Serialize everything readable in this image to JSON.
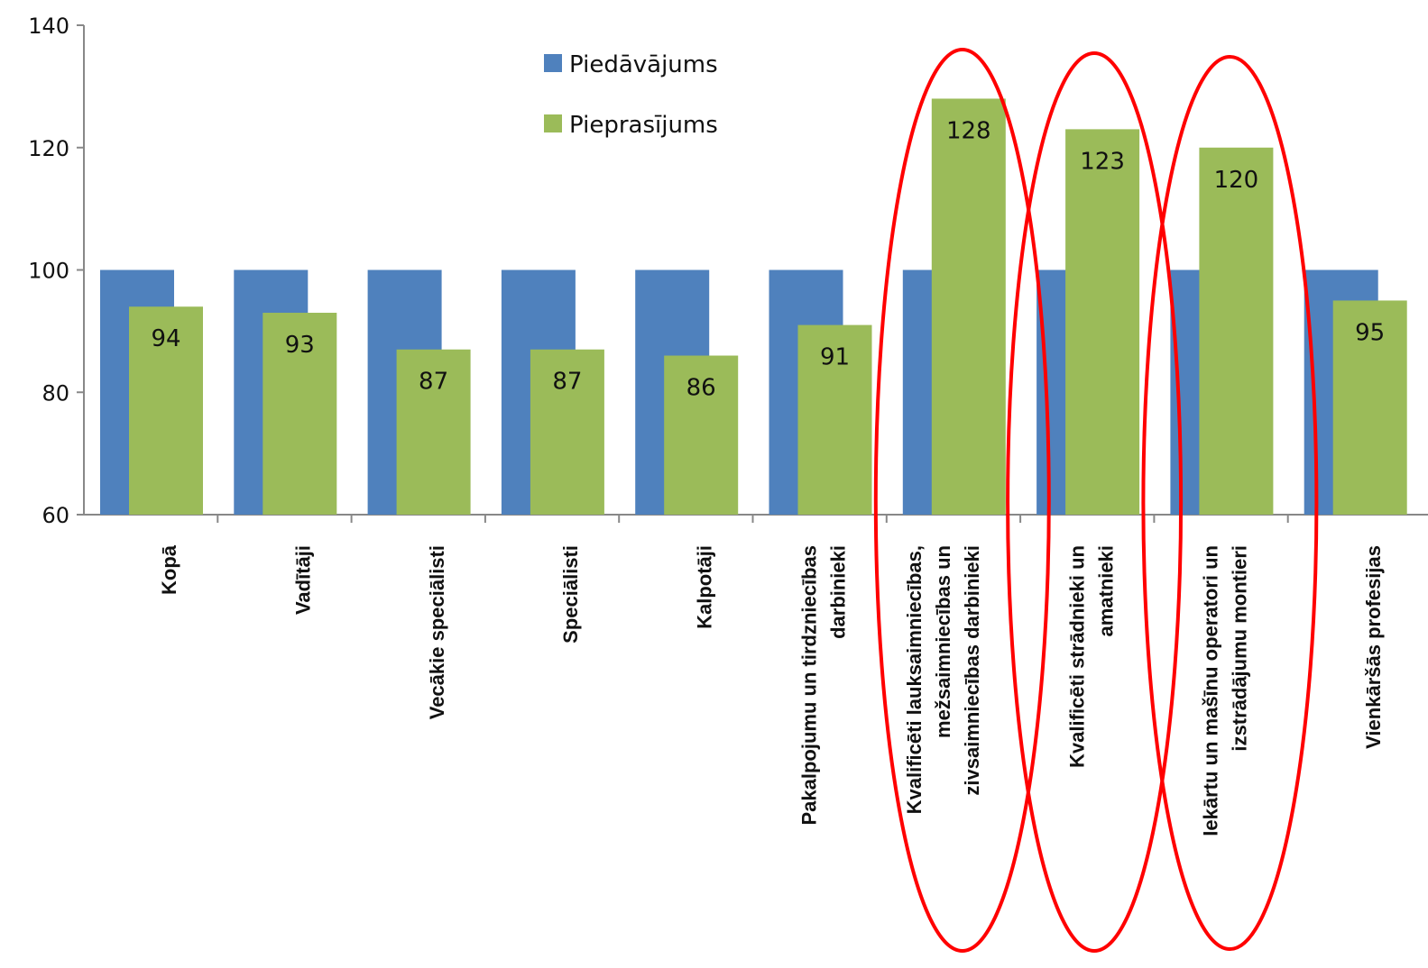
{
  "chart_data": {
    "type": "bar",
    "categories": [
      [
        "Kopā"
      ],
      [
        "Vadītāji"
      ],
      [
        "Vecākie speciālisti"
      ],
      [
        "Speciālisti"
      ],
      [
        "Kalpotāji"
      ],
      [
        "Pakalpojumu un tirdzniecības",
        "darbinieki"
      ],
      [
        "Kvalificēti lauksaimniecības,",
        "mežsaimniecības un",
        "zivsaimniecības darbinieki"
      ],
      [
        "Kvalificēti strādnieki un",
        "amatnieki"
      ],
      [
        "Iekārtu un mašīnu operatori un",
        "izstrādājumu montieri"
      ],
      [
        "Vienkāršās profesijas"
      ]
    ],
    "series": [
      {
        "name": "Piedāvājums",
        "color": "#4f81bd",
        "values": [
          100,
          100,
          100,
          100,
          100,
          100,
          100,
          100,
          100,
          100
        ]
      },
      {
        "name": "Pieprasījums",
        "color": "#9bbb59",
        "values": [
          94,
          93,
          87,
          87,
          86,
          91,
          128,
          123,
          120,
          95
        ],
        "labels": [
          "94",
          "93",
          "87",
          "87",
          "86",
          "91",
          "128",
          "123",
          "120",
          "95"
        ]
      }
    ],
    "ylim": [
      60,
      140
    ],
    "yticks": [
      "60",
      "80",
      "100",
      "120",
      "140"
    ],
    "title": "",
    "xlabel": "",
    "ylabel": "",
    "legend_position": "top-center",
    "grid": false,
    "highlighted_categories": [
      6,
      7,
      8
    ],
    "highlight_color": "#ff0000"
  }
}
